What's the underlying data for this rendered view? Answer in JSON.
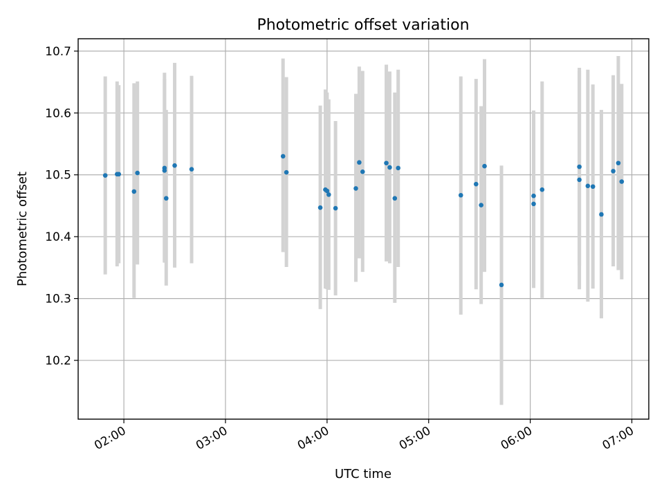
{
  "chart_data": {
    "type": "scatter",
    "title": "Photometric offset variation",
    "xlabel": "UTC time",
    "ylabel": "Photometric offset",
    "x_axis": {
      "type": "time",
      "range": [
        "01:33",
        "07:10"
      ],
      "ticks": [
        {
          "value": "02:00",
          "label": "02:00"
        },
        {
          "value": "03:00",
          "label": "03:00"
        },
        {
          "value": "04:00",
          "label": "04:00"
        },
        {
          "value": "05:00",
          "label": "05:00"
        },
        {
          "value": "06:00",
          "label": "06:00"
        },
        {
          "value": "07:00",
          "label": "07:00"
        }
      ]
    },
    "y_axis": {
      "range": [
        10.105,
        10.72
      ],
      "ticks": [
        10.2,
        10.3,
        10.4,
        10.5,
        10.6,
        10.7
      ],
      "tick_labels": [
        "10.2",
        "10.3",
        "10.4",
        "10.5",
        "10.6",
        "10.7"
      ]
    },
    "grid": true,
    "colors": {
      "point": "#1f77b4",
      "errorbar": "#d3d3d3",
      "grid": "#b0b0b0"
    },
    "points": [
      {
        "x": "01:49",
        "y": 10.499,
        "ylow": 10.339,
        "yhigh": 10.659
      },
      {
        "x": "01:56",
        "y": 10.501,
        "ylow": 10.352,
        "yhigh": 10.651
      },
      {
        "x": "01:57",
        "y": 10.501,
        "ylow": 10.357,
        "yhigh": 10.645
      },
      {
        "x": "02:06",
        "y": 10.473,
        "ylow": 10.301,
        "yhigh": 10.648
      },
      {
        "x": "02:08",
        "y": 10.503,
        "ylow": 10.355,
        "yhigh": 10.651
      },
      {
        "x": "02:24",
        "y": 10.511,
        "ylow": 10.358,
        "yhigh": 10.665
      },
      {
        "x": "02:24",
        "y": 10.507,
        "ylow": 10.359,
        "yhigh": 10.655
      },
      {
        "x": "02:25",
        "y": 10.462,
        "ylow": 10.321,
        "yhigh": 10.605
      },
      {
        "x": "02:30",
        "y": 10.515,
        "ylow": 10.35,
        "yhigh": 10.681
      },
      {
        "x": "02:40",
        "y": 10.509,
        "ylow": 10.357,
        "yhigh": 10.66
      },
      {
        "x": "03:34",
        "y": 10.53,
        "ylow": 10.375,
        "yhigh": 10.688
      },
      {
        "x": "03:36",
        "y": 10.504,
        "ylow": 10.351,
        "yhigh": 10.658
      },
      {
        "x": "03:56",
        "y": 10.447,
        "ylow": 10.283,
        "yhigh": 10.612
      },
      {
        "x": "03:59",
        "y": 10.476,
        "ylow": 10.316,
        "yhigh": 10.638
      },
      {
        "x": "04:00",
        "y": 10.474,
        "ylow": 10.315,
        "yhigh": 10.633
      },
      {
        "x": "04:01",
        "y": 10.468,
        "ylow": 10.314,
        "yhigh": 10.622
      },
      {
        "x": "04:05",
        "y": 10.446,
        "ylow": 10.305,
        "yhigh": 10.587
      },
      {
        "x": "04:17",
        "y": 10.478,
        "ylow": 10.327,
        "yhigh": 10.631
      },
      {
        "x": "04:19",
        "y": 10.52,
        "ylow": 10.365,
        "yhigh": 10.675
      },
      {
        "x": "04:21",
        "y": 10.505,
        "ylow": 10.343,
        "yhigh": 10.668
      },
      {
        "x": "04:35",
        "y": 10.519,
        "ylow": 10.36,
        "yhigh": 10.678
      },
      {
        "x": "04:37",
        "y": 10.512,
        "ylow": 10.357,
        "yhigh": 10.667
      },
      {
        "x": "04:40",
        "y": 10.462,
        "ylow": 10.293,
        "yhigh": 10.633
      },
      {
        "x": "04:42",
        "y": 10.511,
        "ylow": 10.351,
        "yhigh": 10.67
      },
      {
        "x": "05:19",
        "y": 10.467,
        "ylow": 10.274,
        "yhigh": 10.659
      },
      {
        "x": "05:28",
        "y": 10.485,
        "ylow": 10.315,
        "yhigh": 10.655
      },
      {
        "x": "05:31",
        "y": 10.451,
        "ylow": 10.291,
        "yhigh": 10.611
      },
      {
        "x": "05:33",
        "y": 10.514,
        "ylow": 10.343,
        "yhigh": 10.687
      },
      {
        "x": "05:43",
        "y": 10.322,
        "ylow": 10.128,
        "yhigh": 10.515
      },
      {
        "x": "06:02",
        "y": 10.453,
        "ylow": 10.317,
        "yhigh": 10.59
      },
      {
        "x": "06:02",
        "y": 10.466,
        "ylow": 10.328,
        "yhigh": 10.604
      },
      {
        "x": "06:07",
        "y": 10.476,
        "ylow": 10.301,
        "yhigh": 10.651
      },
      {
        "x": "06:29",
        "y": 10.492,
        "ylow": 10.315,
        "yhigh": 10.668
      },
      {
        "x": "06:29",
        "y": 10.513,
        "ylow": 10.353,
        "yhigh": 10.673
      },
      {
        "x": "06:34",
        "y": 10.482,
        "ylow": 10.295,
        "yhigh": 10.67
      },
      {
        "x": "06:37",
        "y": 10.481,
        "ylow": 10.316,
        "yhigh": 10.646
      },
      {
        "x": "06:42",
        "y": 10.436,
        "ylow": 10.268,
        "yhigh": 10.605
      },
      {
        "x": "06:49",
        "y": 10.506,
        "ylow": 10.352,
        "yhigh": 10.661
      },
      {
        "x": "06:52",
        "y": 10.519,
        "ylow": 10.346,
        "yhigh": 10.692
      },
      {
        "x": "06:54",
        "y": 10.489,
        "ylow": 10.331,
        "yhigh": 10.647
      }
    ]
  }
}
